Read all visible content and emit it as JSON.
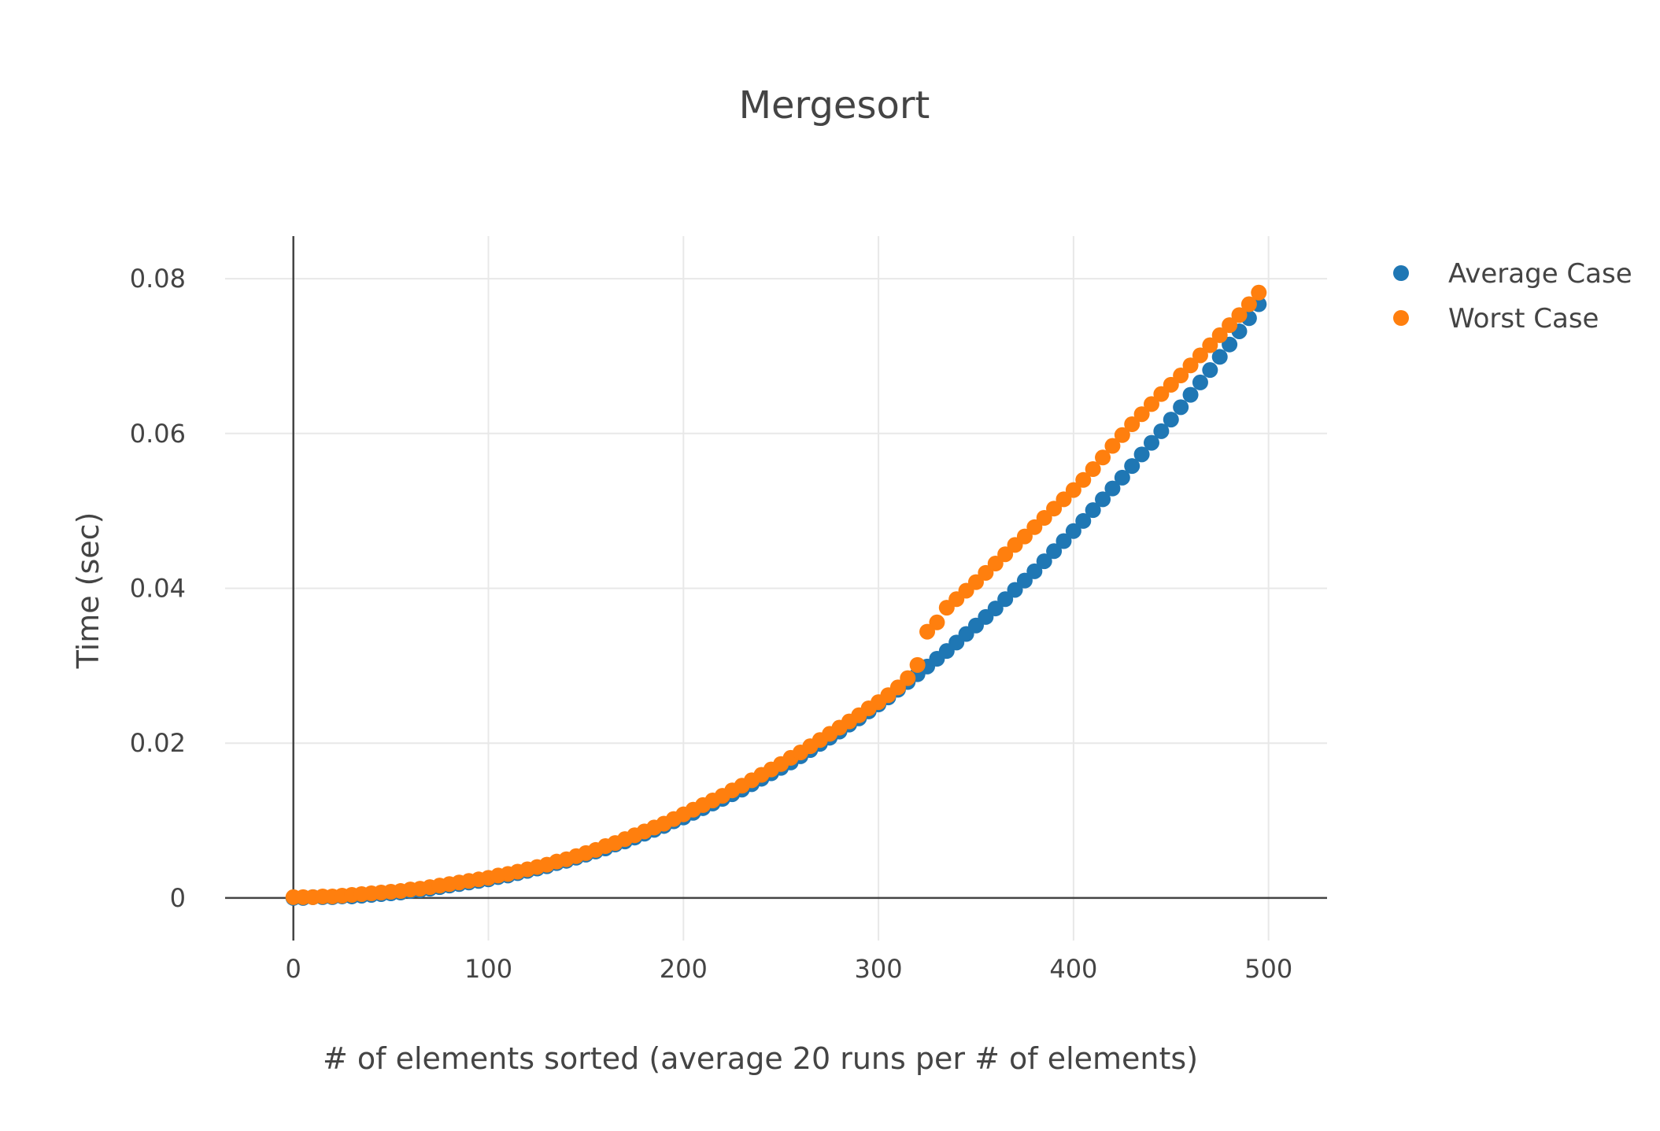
{
  "chart_data": {
    "type": "scatter",
    "title": "Mergesort",
    "xlabel": "# of elements sorted (average 20 runs per # of elements)",
    "ylabel": "Time (sec)",
    "xlim": [
      -35,
      530
    ],
    "ylim": [
      -0.0055,
      0.0855
    ],
    "xticks": [
      0,
      100,
      200,
      300,
      400,
      500
    ],
    "xtick_labels": [
      "0",
      "100",
      "200",
      "300",
      "400",
      "500"
    ],
    "yticks": [
      0,
      0.02,
      0.04,
      0.06,
      0.08
    ],
    "ytick_labels": [
      "0",
      "0.02",
      "0.04",
      "0.06",
      "0.08"
    ],
    "grid": true,
    "legend": "top-right outside",
    "x": [
      0,
      5,
      10,
      15,
      20,
      25,
      30,
      35,
      40,
      45,
      50,
      55,
      60,
      65,
      70,
      75,
      80,
      85,
      90,
      95,
      100,
      105,
      110,
      115,
      120,
      125,
      130,
      135,
      140,
      145,
      150,
      155,
      160,
      165,
      170,
      175,
      180,
      185,
      190,
      195,
      200,
      205,
      210,
      215,
      220,
      225,
      230,
      235,
      240,
      245,
      250,
      255,
      260,
      265,
      270,
      275,
      280,
      285,
      290,
      295,
      300,
      305,
      310,
      315,
      320,
      325,
      330,
      335,
      340,
      345,
      350,
      355,
      360,
      365,
      370,
      375,
      380,
      385,
      390,
      395,
      400,
      405,
      410,
      415,
      420,
      425,
      430,
      435,
      440,
      445,
      450,
      455,
      460,
      465,
      470,
      475,
      480,
      485,
      490,
      495
    ],
    "series": [
      {
        "name": "Average Case",
        "color": "#1f77b4",
        "values": [
          0.0,
          0.0,
          0.0001,
          0.0001,
          0.0001,
          0.0002,
          0.0002,
          0.0003,
          0.0004,
          0.0005,
          0.0006,
          0.0007,
          0.0009,
          0.001,
          0.0012,
          0.0014,
          0.0016,
          0.0018,
          0.002,
          0.0022,
          0.0024,
          0.0027,
          0.0029,
          0.0032,
          0.0035,
          0.0038,
          0.0041,
          0.0045,
          0.0048,
          0.0052,
          0.0056,
          0.006,
          0.0064,
          0.0069,
          0.0073,
          0.0078,
          0.0083,
          0.0088,
          0.0093,
          0.0099,
          0.0104,
          0.011,
          0.0116,
          0.0122,
          0.0128,
          0.0134,
          0.014,
          0.0147,
          0.0154,
          0.0161,
          0.0168,
          0.0175,
          0.0183,
          0.0191,
          0.0199,
          0.0207,
          0.0215,
          0.0224,
          0.0232,
          0.0241,
          0.025,
          0.0259,
          0.0269,
          0.0279,
          0.0289,
          0.0299,
          0.0309,
          0.0319,
          0.033,
          0.0341,
          0.0352,
          0.0363,
          0.0374,
          0.0386,
          0.0398,
          0.041,
          0.0422,
          0.0435,
          0.0448,
          0.0461,
          0.0474,
          0.0487,
          0.0501,
          0.0515,
          0.0529,
          0.0543,
          0.0558,
          0.0573,
          0.0588,
          0.0603,
          0.0618,
          0.0634,
          0.065,
          0.0666,
          0.0682,
          0.0699,
          0.0715,
          0.0732,
          0.0749,
          0.0767
        ]
      },
      {
        "name": "Worst Case",
        "color": "#ff7f0e",
        "values": [
          0.0001,
          0.0001,
          0.0001,
          0.0002,
          0.0002,
          0.0003,
          0.0004,
          0.0005,
          0.0006,
          0.0007,
          0.0008,
          0.0009,
          0.0011,
          0.0012,
          0.0014,
          0.0016,
          0.0018,
          0.002,
          0.0022,
          0.0024,
          0.0026,
          0.0029,
          0.0031,
          0.0034,
          0.0037,
          0.004,
          0.0043,
          0.0047,
          0.005,
          0.0054,
          0.0058,
          0.0062,
          0.0067,
          0.0071,
          0.0076,
          0.0081,
          0.0086,
          0.0091,
          0.0096,
          0.0102,
          0.0108,
          0.0114,
          0.012,
          0.0126,
          0.0132,
          0.0139,
          0.0145,
          0.0152,
          0.0159,
          0.0166,
          0.0173,
          0.0181,
          0.0188,
          0.0196,
          0.0204,
          0.0212,
          0.022,
          0.0228,
          0.0236,
          0.0245,
          0.0253,
          0.0262,
          0.0272,
          0.0284,
          0.0301,
          0.0344,
          0.0356,
          0.0375,
          0.0386,
          0.0397,
          0.0408,
          0.042,
          0.0432,
          0.0444,
          0.0456,
          0.0467,
          0.0479,
          0.0491,
          0.0503,
          0.0515,
          0.0527,
          0.054,
          0.0554,
          0.0569,
          0.0584,
          0.0598,
          0.0612,
          0.0625,
          0.0638,
          0.0651,
          0.0663,
          0.0675,
          0.0688,
          0.0701,
          0.0714,
          0.0727,
          0.074,
          0.0753,
          0.0767,
          0.0782
        ]
      }
    ]
  }
}
